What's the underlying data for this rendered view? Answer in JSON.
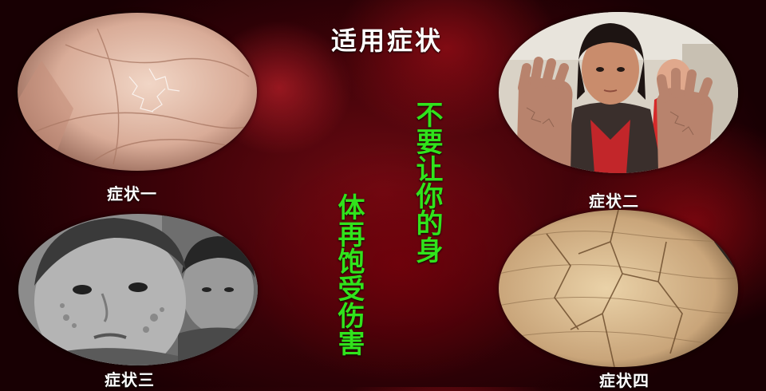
{
  "title": "适用症状",
  "slogan": {
    "line1": "不要让你的身",
    "line2": "体再饱受伤害"
  },
  "captions": [
    "症状一",
    "症状二",
    "症状三",
    "症状四"
  ],
  "colors": {
    "background": "#5a0610",
    "title_text": "#ffffff",
    "slogan_text": "#31e31c",
    "caption_text": "#ffffff"
  }
}
